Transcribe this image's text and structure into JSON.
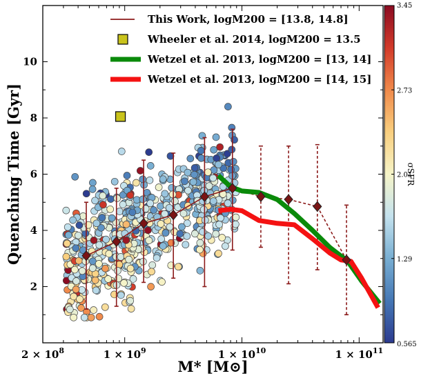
{
  "chart_data": {
    "type": "scatter",
    "title": "",
    "xlabel": "M* [M⊙]",
    "ylabel": "Quenching Time [Gyr]",
    "xscale": "log",
    "xlim": [
      200000000.0,
      160000000000.0
    ],
    "ylim": [
      0,
      12
    ],
    "x_ticks": [
      {
        "value": 200000000.0,
        "label": "2 × 10^8"
      },
      {
        "value": 1000000000.0,
        "label": "1 × 10^9"
      },
      {
        "value": 10000000000.0,
        "label": "1 × 10^10"
      },
      {
        "value": 100000000000.0,
        "label": "1 × 10^11"
      }
    ],
    "y_ticks": [
      2,
      4,
      6,
      8,
      10
    ],
    "grid": false,
    "legend_position": "top-right",
    "colorbar": {
      "label": "σSFR",
      "min": 0.565,
      "max": 3.45,
      "ticks": [
        "3.45",
        "2.73",
        "2.01",
        "1.29",
        "0.565"
      ],
      "colormap": [
        "#2c3b8f",
        "#4577b5",
        "#78aed2",
        "#c4e2ee",
        "#f6f4c8",
        "#f9cf7f",
        "#f08a4b",
        "#d23a2a",
        "#8a0b22"
      ]
    },
    "series": [
      {
        "name": "This Work, logM200 = [13.8, 14.8]",
        "style": "solid-line-diamond",
        "color": "#8b1a1a",
        "points": [
          {
            "x": 470000000.0,
            "y": 3.1,
            "lo": 1.2,
            "hi": 5.0
          },
          {
            "x": 850000000.0,
            "y": 3.6,
            "lo": 1.3,
            "hi": 5.5
          },
          {
            "x": 1450000000.0,
            "y": 4.25,
            "lo": 2.15,
            "hi": 6.5
          },
          {
            "x": 2600000000.0,
            "y": 4.55,
            "lo": 2.3,
            "hi": 6.75
          },
          {
            "x": 4800000000.0,
            "y": 5.2,
            "lo": 2.0,
            "hi": 7.3
          },
          {
            "x": 8300000000.0,
            "y": 5.5,
            "lo": 3.3,
            "hi": 7.6
          }
        ]
      },
      {
        "name": "This Work (continued)",
        "style": "dashed-line-diamond",
        "color": "#8b1a1a",
        "points": [
          {
            "x": 8300000000.0,
            "y": 5.5,
            "lo": 3.3,
            "hi": 7.6
          },
          {
            "x": 14500000000.0,
            "y": 5.2,
            "lo": 3.4,
            "hi": 7.0
          },
          {
            "x": 25000000000.0,
            "y": 5.1,
            "lo": 2.1,
            "hi": 7.0
          },
          {
            "x": 44000000000.0,
            "y": 4.85,
            "lo": 2.6,
            "hi": 7.05
          },
          {
            "x": 78000000000.0,
            "y": 2.95,
            "lo": 1.0,
            "hi": 4.9
          }
        ]
      },
      {
        "name": "Wheeler et al. 2014, logM200 = 13.5",
        "style": "square",
        "color": "#c9c31c",
        "points": [
          {
            "x": 920000000.0,
            "y": 8.05
          }
        ]
      },
      {
        "name": "Wetzel et al. 2013, logM200 = [13, 14]",
        "style": "thick-line",
        "color": "#0a8a0a",
        "points": [
          {
            "x": 6300000000.0,
            "y": 5.95
          },
          {
            "x": 8000000000.0,
            "y": 5.55
          },
          {
            "x": 10000000000.0,
            "y": 5.4
          },
          {
            "x": 14000000000.0,
            "y": 5.35
          },
          {
            "x": 20000000000.0,
            "y": 5.1
          },
          {
            "x": 28000000000.0,
            "y": 4.6
          },
          {
            "x": 40000000000.0,
            "y": 4.0
          },
          {
            "x": 56000000000.0,
            "y": 3.4
          },
          {
            "x": 80000000000.0,
            "y": 2.9
          },
          {
            "x": 105000000000.0,
            "y": 2.2
          },
          {
            "x": 150000000000.0,
            "y": 1.4
          }
        ]
      },
      {
        "name": "Wetzel et al. 2013, logM200 = [14, 15]",
        "style": "thick-line",
        "color": "#f41212",
        "points": [
          {
            "x": 6300000000.0,
            "y": 4.7
          },
          {
            "x": 8000000000.0,
            "y": 4.75
          },
          {
            "x": 10000000000.0,
            "y": 4.7
          },
          {
            "x": 14000000000.0,
            "y": 4.35
          },
          {
            "x": 20000000000.0,
            "y": 4.25
          },
          {
            "x": 28000000000.0,
            "y": 4.2
          },
          {
            "x": 40000000000.0,
            "y": 3.7
          },
          {
            "x": 56000000000.0,
            "y": 3.2
          },
          {
            "x": 70000000000.0,
            "y": 2.95
          },
          {
            "x": 85000000000.0,
            "y": 2.9
          },
          {
            "x": 105000000000.0,
            "y": 2.3
          },
          {
            "x": 145000000000.0,
            "y": 1.25
          }
        ]
      }
    ],
    "legend": [
      {
        "style": "thin-line",
        "color": "#8b1a1a",
        "label": "This Work, logM200 = [13.8, 14.8]"
      },
      {
        "style": "square",
        "color": "#c9c31c",
        "label": "Wheeler et al. 2014, logM200 = 13.5"
      },
      {
        "style": "thick-line",
        "color": "#0a8a0a",
        "label": "Wetzel et al. 2013, logM200 = [13, 14]"
      },
      {
        "style": "thick-line",
        "color": "#f41212",
        "label": "Wetzel et al. 2013, logM200 = [14, 15]"
      }
    ]
  }
}
